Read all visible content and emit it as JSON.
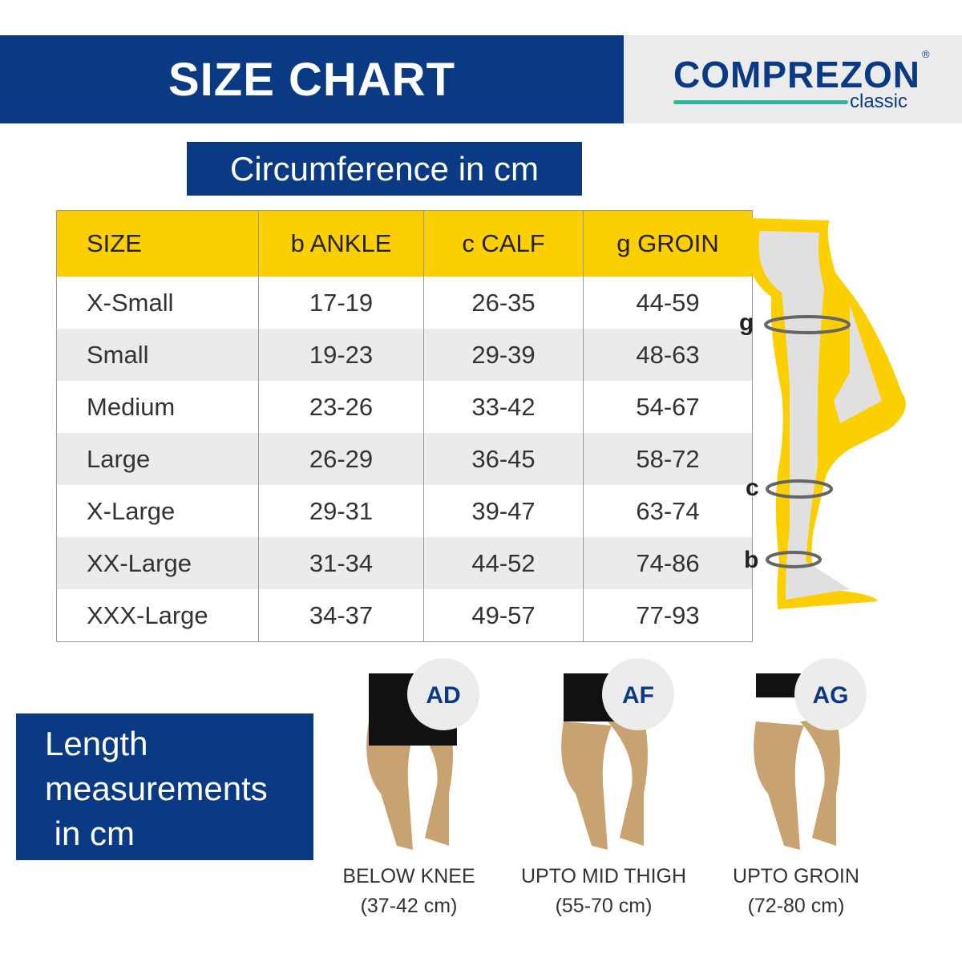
{
  "header": {
    "title": "SIZE CHART",
    "brand": {
      "name": "COMPREZON",
      "sub": "classic",
      "reg": "®",
      "accent": "#2fb59a",
      "color": "#0b3a85"
    }
  },
  "circumference": {
    "title": "Circumference in cm"
  },
  "table": {
    "columns": [
      "SIZE",
      "b ANKLE",
      "c CALF",
      "g GROIN"
    ],
    "rows": [
      [
        "X-Small",
        "17-19",
        "26-35",
        "44-59"
      ],
      [
        "Small",
        "19-23",
        "29-39",
        "48-63"
      ],
      [
        "Medium",
        "23-26",
        "33-42",
        "54-67"
      ],
      [
        "Large",
        "26-29",
        "36-45",
        "58-72"
      ],
      [
        "X-Large",
        "29-31",
        "39-47",
        "63-74"
      ],
      [
        "XX-Large",
        "31-34",
        "44-52",
        "74-86"
      ],
      [
        "XXX-Large",
        "34-37",
        "49-57",
        "77-93"
      ]
    ],
    "header_color": "#fccf00"
  },
  "diagram": {
    "labels": {
      "g": "g",
      "c": "c",
      "b": "b"
    }
  },
  "length": {
    "title_lines": [
      "Length",
      "measurements",
      " in cm"
    ],
    "types": [
      {
        "code": "AD",
        "name": "BELOW KNEE",
        "range": "(37-42 cm)"
      },
      {
        "code": "AF",
        "name": "UPTO MID THIGH",
        "range": "(55-70 cm)"
      },
      {
        "code": "AG",
        "name": "UPTO GROIN",
        "range": "(72-80 cm)"
      }
    ]
  }
}
